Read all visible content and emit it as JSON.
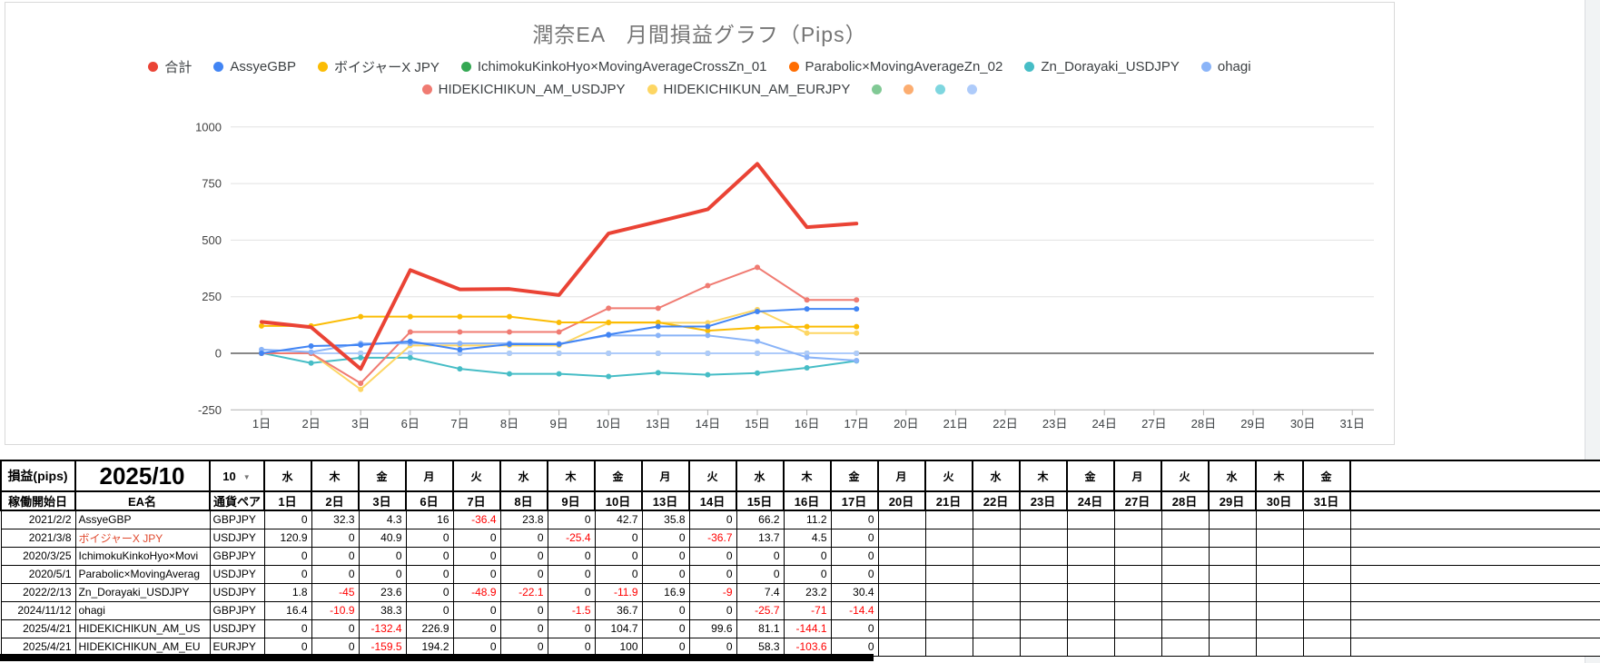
{
  "chart_data": {
    "type": "line",
    "title": "潤奈EA　月間損益グラフ（Pips）",
    "xlabel": "",
    "ylabel": "",
    "ylim": [
      -250,
      1000
    ],
    "y_ticks": [
      1000,
      750,
      500,
      250,
      0,
      -250
    ],
    "grid": true,
    "legend_position": "top",
    "x_categories": [
      "1日",
      "2日",
      "3日",
      "6日",
      "7日",
      "8日",
      "9日",
      "10日",
      "13日",
      "14日",
      "15日",
      "16日",
      "17日",
      "20日",
      "21日",
      "22日",
      "23日",
      "24日",
      "27日",
      "28日",
      "29日",
      "30日",
      "31日"
    ],
    "plotted_categories": [
      "1日",
      "2日",
      "3日",
      "6日",
      "7日",
      "8日",
      "9日",
      "10日",
      "13日",
      "14日",
      "15日",
      "16日",
      "17日"
    ],
    "series": [
      {
        "name": "合計",
        "color": "#EA4335",
        "width": 4,
        "z": 13,
        "markers": false,
        "values": [
          139.1,
          115.5,
          -69.3,
          367.8,
          282.5,
          284.2,
          257.3,
          529.5,
          582.2,
          636.1,
          837.1,
          557.3,
          573.3
        ]
      },
      {
        "name": "AssyeGBP",
        "color": "#4285F4",
        "width": 2,
        "z": 12,
        "markers": true,
        "values": [
          0,
          32.3,
          36.6,
          52.6,
          16.2,
          40,
          40,
          82.7,
          118.5,
          118.5,
          184.7,
          195.9,
          195.9
        ]
      },
      {
        "name": "ボイジャーX JPY",
        "color": "#FBBC04",
        "width": 2,
        "z": 10,
        "markers": true,
        "values": [
          120.9,
          120.9,
          161.8,
          161.8,
          161.8,
          161.8,
          136.4,
          136.4,
          136.4,
          99.7,
          113.4,
          117.9,
          117.9
        ]
      },
      {
        "name": "IchimokuKinkoHyo×MovingAverageCrossZn_01",
        "color": "#34A853",
        "width": 2,
        "z": 1,
        "markers": true,
        "values": [
          0,
          0,
          0,
          0,
          0,
          0,
          0,
          0,
          0,
          0,
          0,
          0,
          0
        ]
      },
      {
        "name": "Parabolic×MovingAverageZn_02",
        "color": "#FF6D01",
        "width": 2,
        "z": 2,
        "markers": true,
        "values": [
          0,
          0,
          0,
          0,
          0,
          0,
          0,
          0,
          0,
          0,
          0,
          0,
          0
        ]
      },
      {
        "name": "Zn_Dorayaki_USDJPY",
        "color": "#46BDC6",
        "width": 2,
        "z": 7,
        "markers": true,
        "values": [
          1.8,
          -43.2,
          -19.6,
          -19.6,
          -68.5,
          -90.6,
          -90.6,
          -102.5,
          -85.6,
          -94.6,
          -87.2,
          -64,
          -33.6
        ]
      },
      {
        "name": "ohagi",
        "color": "#8AB4F8",
        "width": 2,
        "z": 11,
        "markers": true,
        "values": [
          16.4,
          5.5,
          43.8,
          43.8,
          43.8,
          43.8,
          42.3,
          79,
          79,
          79,
          53.3,
          -17.7,
          -32.1
        ]
      },
      {
        "name": "HIDEKICHIKUN_AM_USDJPY",
        "color": "#F07B72",
        "width": 2,
        "z": 9,
        "markers": true,
        "values": [
          0,
          0,
          -132.4,
          94.5,
          94.5,
          94.5,
          94.5,
          199.2,
          199.2,
          298.8,
          379.9,
          235.8,
          235.8
        ]
      },
      {
        "name": "HIDEKICHIKUN_AM_EURJPY",
        "color": "#FDD663",
        "width": 2,
        "z": 8,
        "markers": true,
        "values": [
          0,
          0,
          -159.5,
          34.7,
          34.7,
          34.7,
          34.7,
          134.7,
          134.7,
          134.7,
          193,
          89.4,
          89.4
        ]
      },
      {
        "name": "",
        "color": "#81C995",
        "width": 2,
        "z": 3,
        "markers": true,
        "values": [
          0,
          0,
          0,
          0,
          0,
          0,
          0,
          0,
          0,
          0,
          0,
          0,
          0
        ]
      },
      {
        "name": "",
        "color": "#FCAD70",
        "width": 2,
        "z": 4,
        "markers": true,
        "values": [
          0,
          0,
          0,
          0,
          0,
          0,
          0,
          0,
          0,
          0,
          0,
          0,
          0
        ]
      },
      {
        "name": "",
        "color": "#7ED6DF",
        "width": 2,
        "z": 5,
        "markers": true,
        "values": [
          0,
          0,
          0,
          0,
          0,
          0,
          0,
          0,
          0,
          0,
          0,
          0,
          0
        ]
      },
      {
        "name": "",
        "color": "#AECBFA",
        "width": 2,
        "z": 6,
        "markers": true,
        "values": [
          0,
          0,
          0,
          0,
          0,
          0,
          0,
          0,
          0,
          0,
          0,
          0,
          0
        ]
      }
    ],
    "legend_rows": [
      [
        0,
        1,
        2,
        3,
        4,
        5,
        6
      ],
      [
        7,
        8,
        9,
        10,
        11,
        12
      ]
    ]
  },
  "table": {
    "corner_label": "損益(pips)",
    "month_label": "2025/10",
    "month_selector_value": "10",
    "dropdown_icon": "▼",
    "col_headers": [
      "稼働開始日",
      "EA名",
      "通貨ペア"
    ],
    "weekday_headers": [
      "水",
      "木",
      "金",
      "月",
      "火",
      "水",
      "木",
      "金",
      "月",
      "火",
      "水",
      "木",
      "金",
      "月",
      "火",
      "水",
      "木",
      "金",
      "月",
      "火",
      "水",
      "木",
      "金"
    ],
    "day_headers": [
      "1日",
      "2日",
      "3日",
      "6日",
      "7日",
      "8日",
      "9日",
      "10日",
      "13日",
      "14日",
      "15日",
      "16日",
      "17日",
      "20日",
      "21日",
      "22日",
      "23日",
      "24日",
      "27日",
      "28日",
      "29日",
      "30日",
      "31日"
    ],
    "rows": [
      {
        "date": "2021/2/2",
        "name": "AssyeGBP",
        "name_red": false,
        "pair": "GBPJPY",
        "values": [
          "0",
          "32.3",
          "4.3",
          "16",
          "-36.4",
          "23.8",
          "0",
          "42.7",
          "35.8",
          "0",
          "66.2",
          "11.2",
          "0",
          "",
          "",
          "",
          "",
          "",
          "",
          "",
          "",
          "",
          ""
        ]
      },
      {
        "date": "2021/3/8",
        "name": "ボイジャーX JPY",
        "name_red": true,
        "pair": "USDJPY",
        "values": [
          "120.9",
          "0",
          "40.9",
          "0",
          "0",
          "0",
          "-25.4",
          "0",
          "0",
          "-36.7",
          "13.7",
          "4.5",
          "0",
          "",
          "",
          "",
          "",
          "",
          "",
          "",
          "",
          "",
          ""
        ]
      },
      {
        "date": "2020/3/25",
        "name": "IchimokuKinkoHyo×Movi",
        "name_red": false,
        "pair": "GBPJPY",
        "values": [
          "0",
          "0",
          "0",
          "0",
          "0",
          "0",
          "0",
          "0",
          "0",
          "0",
          "0",
          "0",
          "0",
          "",
          "",
          "",
          "",
          "",
          "",
          "",
          "",
          "",
          ""
        ]
      },
      {
        "date": "2020/5/1",
        "name": "Parabolic×MovingAverag",
        "name_red": false,
        "pair": "USDJPY",
        "values": [
          "0",
          "0",
          "0",
          "0",
          "0",
          "0",
          "0",
          "0",
          "0",
          "0",
          "0",
          "0",
          "0",
          "",
          "",
          "",
          "",
          "",
          "",
          "",
          "",
          "",
          ""
        ]
      },
      {
        "date": "2022/2/13",
        "name": "Zn_Dorayaki_USDJPY",
        "name_red": false,
        "pair": "USDJPY",
        "values": [
          "1.8",
          "-45",
          "23.6",
          "0",
          "-48.9",
          "-22.1",
          "0",
          "-11.9",
          "16.9",
          "-9",
          "7.4",
          "23.2",
          "30.4",
          "",
          "",
          "",
          "",
          "",
          "",
          "",
          "",
          "",
          ""
        ]
      },
      {
        "date": "2024/11/12",
        "name": "ohagi",
        "name_red": false,
        "pair": "GBPJPY",
        "values": [
          "16.4",
          "-10.9",
          "38.3",
          "0",
          "0",
          "0",
          "-1.5",
          "36.7",
          "0",
          "0",
          "-25.7",
          "-71",
          "-14.4",
          "",
          "",
          "",
          "",
          "",
          "",
          "",
          "",
          "",
          ""
        ]
      },
      {
        "date": "2025/4/21",
        "name": "HIDEKICHIKUN_AM_US",
        "name_red": false,
        "pair": "USDJPY",
        "values": [
          "0",
          "0",
          "-132.4",
          "226.9",
          "0",
          "0",
          "0",
          "104.7",
          "0",
          "99.6",
          "81.1",
          "-144.1",
          "0",
          "",
          "",
          "",
          "",
          "",
          "",
          "",
          "",
          "",
          ""
        ]
      },
      {
        "date": "2025/4/21",
        "name": "HIDEKICHIKUN_AM_EU",
        "name_red": false,
        "pair": "EURJPY",
        "values": [
          "0",
          "0",
          "-159.5",
          "194.2",
          "0",
          "0",
          "0",
          "100",
          "0",
          "0",
          "58.3",
          "-103.6",
          "0",
          "",
          "",
          "",
          "",
          "",
          "",
          "",
          "",
          "",
          ""
        ]
      }
    ]
  }
}
